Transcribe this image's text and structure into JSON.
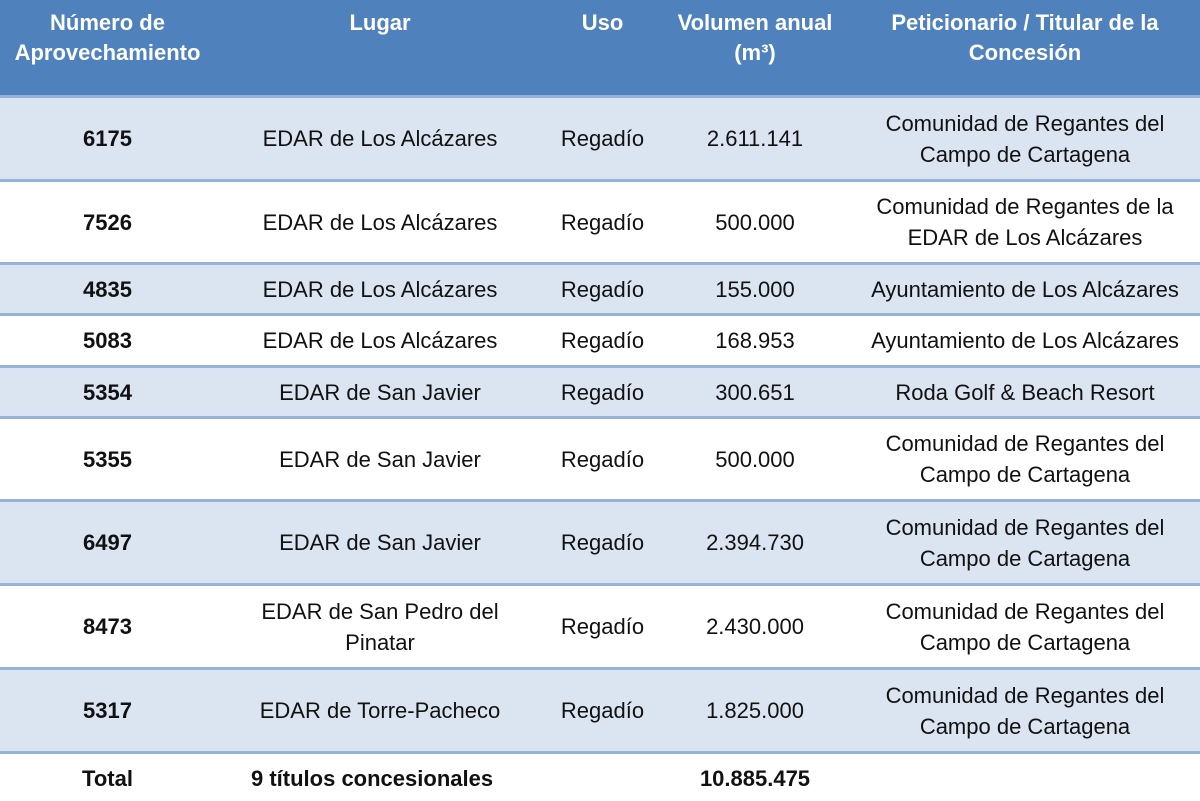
{
  "table": {
    "header": [
      "Número de Aprovechamiento",
      "Lugar",
      "Uso",
      "Volumen anual (m³)",
      "Peticionario / Titular de la Concesión"
    ],
    "rows": [
      [
        "6175",
        "EDAR de Los Alcázares",
        "Regadío",
        "2.611.141",
        "Comunidad de Regantes del Campo de Cartagena"
      ],
      [
        "7526",
        "EDAR de Los Alcázares",
        "Regadío",
        "500.000",
        "Comunidad de Regantes de la EDAR de Los Alcázares"
      ],
      [
        "4835",
        "EDAR de Los Alcázares",
        "Regadío",
        "155.000",
        "Ayuntamiento de Los Alcázares"
      ],
      [
        "5083",
        "EDAR de Los Alcázares",
        "Regadío",
        "168.953",
        "Ayuntamiento de Los Alcázares"
      ],
      [
        "5354",
        "EDAR de San Javier",
        "Regadío",
        "300.651",
        "Roda Golf & Beach Resort"
      ],
      [
        "5355",
        "EDAR de San Javier",
        "Regadío",
        "500.000",
        "Comunidad de Regantes del Campo de Cartagena"
      ],
      [
        "6497",
        "EDAR de San Javier",
        "Regadío",
        "2.394.730",
        "Comunidad de Regantes del Campo de Cartagena"
      ],
      [
        "8473",
        "EDAR de San Pedro del Pinatar",
        "Regadío",
        "2.430.000",
        "Comunidad de Regantes del Campo de Cartagena"
      ],
      [
        "5317",
        "EDAR de Torre-Pacheco",
        "Regadío",
        "1.825.000",
        "Comunidad de Regantes del Campo de Cartagena"
      ]
    ],
    "total": {
      "label": "Total",
      "description": "9 títulos concesionales",
      "volume": "10.885.475"
    }
  }
}
